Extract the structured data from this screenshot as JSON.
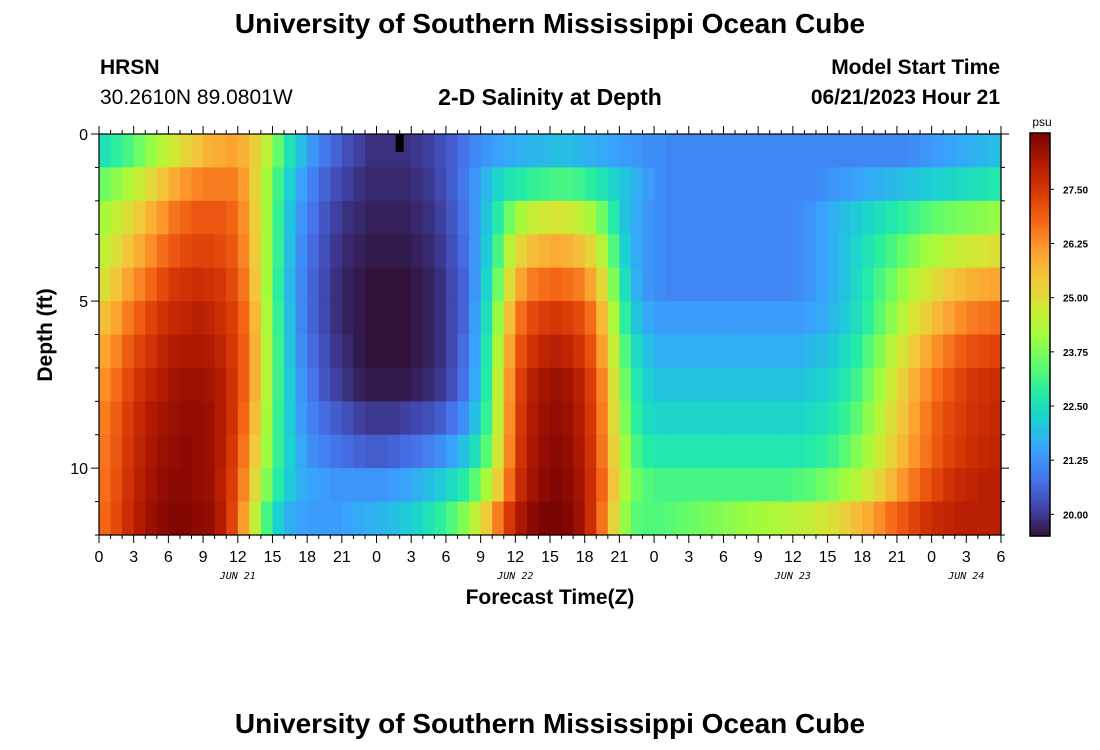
{
  "header": {
    "title": "University of Southern Mississippi Ocean Cube",
    "station": "HRSN",
    "coords": "30.2610N  89.0801W",
    "subtitle": "2-D Salinity at Depth",
    "model_start_label": "Model Start Time",
    "model_start_value": "06/21/2023 Hour 21"
  },
  "footer": {
    "title": "University of Southern Mississippi Ocean Cube"
  },
  "colors": {
    "colormap": [
      "#30123b",
      "#4145ab",
      "#4675ed",
      "#39a2fc",
      "#1bcfd4",
      "#24eca6",
      "#61fc6c",
      "#a4fc3b",
      "#d1e834",
      "#f3c63a",
      "#fe9b2d",
      "#f36315",
      "#d93806",
      "#b11901",
      "#7a0402"
    ]
  },
  "chart_data": {
    "type": "heatmap",
    "title": "2-D Salinity at Depth",
    "xlabel": "Forecast Time(Z)",
    "ylabel": "Depth (ft)",
    "x_range_hours": [
      0,
      78
    ],
    "x_ticks": [
      {
        "h": 0,
        "label": "0"
      },
      {
        "h": 3,
        "label": "3"
      },
      {
        "h": 6,
        "label": "6"
      },
      {
        "h": 9,
        "label": "9"
      },
      {
        "h": 12,
        "label": "12"
      },
      {
        "h": 15,
        "label": "15"
      },
      {
        "h": 18,
        "label": "18"
      },
      {
        "h": 21,
        "label": "21"
      },
      {
        "h": 24,
        "label": "0"
      },
      {
        "h": 27,
        "label": "3"
      },
      {
        "h": 30,
        "label": "6"
      },
      {
        "h": 33,
        "label": "9"
      },
      {
        "h": 36,
        "label": "12"
      },
      {
        "h": 39,
        "label": "15"
      },
      {
        "h": 42,
        "label": "18"
      },
      {
        "h": 45,
        "label": "21"
      },
      {
        "h": 48,
        "label": "0"
      },
      {
        "h": 51,
        "label": "3"
      },
      {
        "h": 54,
        "label": "6"
      },
      {
        "h": 57,
        "label": "9"
      },
      {
        "h": 60,
        "label": "12"
      },
      {
        "h": 63,
        "label": "15"
      },
      {
        "h": 66,
        "label": "18"
      },
      {
        "h": 69,
        "label": "21"
      },
      {
        "h": 72,
        "label": "0"
      },
      {
        "h": 75,
        "label": "3"
      },
      {
        "h": 78,
        "label": "6"
      }
    ],
    "date_labels": [
      {
        "h": 12,
        "label": "JUN 21"
      },
      {
        "h": 36,
        "label": "JUN 22"
      },
      {
        "h": 60,
        "label": "JUN 23"
      },
      {
        "h": 75,
        "label": "JUN 24"
      }
    ],
    "y_range_ft": [
      0,
      12
    ],
    "y_ticks": [
      {
        "v": 0,
        "label": "0"
      },
      {
        "v": 5,
        "label": "5"
      },
      {
        "v": 10,
        "label": "10"
      }
    ],
    "current_time_marker_hour": 26,
    "colorbar": {
      "unit": "psu",
      "range": [
        19.5,
        28.8
      ],
      "ticks": [
        {
          "v": 20.0,
          "label": "20.00"
        },
        {
          "v": 21.25,
          "label": "21.25"
        },
        {
          "v": 22.5,
          "label": "22.50"
        },
        {
          "v": 23.75,
          "label": "23.75"
        },
        {
          "v": 25.0,
          "label": "25.00"
        },
        {
          "v": 26.25,
          "label": "26.25"
        },
        {
          "v": 27.5,
          "label": "27.50"
        }
      ]
    },
    "time_step_hours": 1,
    "depth_levels_ft": [
      0.5,
      1.5,
      2.5,
      3.5,
      4.5,
      5.5,
      6.5,
      7.5,
      8.5,
      9.5,
      10.5,
      11.5
    ],
    "salinity_rows_psu": [
      [
        22.6,
        22.9,
        23.2,
        23.6,
        24.0,
        24.4,
        24.8,
        25.2,
        25.5,
        25.8,
        25.9,
        26.0,
        25.8,
        25.3,
        24.5,
        23.5,
        22.6,
        21.9,
        21.3,
        20.9,
        20.6,
        20.3,
        20.1,
        19.9,
        19.9,
        19.9,
        19.9,
        20.0,
        20.1,
        20.3,
        20.5,
        20.8,
        21.1,
        21.3,
        21.5,
        21.6,
        21.7,
        21.8,
        21.8,
        21.9,
        21.9,
        21.8,
        21.7,
        21.6,
        21.5,
        21.4,
        21.3,
        21.2,
        21.2,
        21.1,
        21.1,
        21.1,
        21.1,
        21.1,
        21.1,
        21.1,
        21.1,
        21.1,
        21.1,
        21.1,
        21.1,
        21.1,
        21.1,
        21.1,
        21.1,
        21.1,
        21.1,
        21.1,
        21.1,
        21.1,
        21.2,
        21.3,
        21.4,
        21.5,
        21.6,
        21.7,
        21.8,
        21.9
      ],
      [
        23.6,
        23.9,
        24.3,
        24.7,
        25.1,
        25.5,
        25.9,
        26.2,
        26.4,
        26.5,
        26.5,
        26.5,
        26.1,
        25.2,
        24.2,
        23.1,
        22.2,
        21.5,
        21.0,
        20.6,
        20.3,
        20.1,
        19.9,
        19.8,
        19.8,
        19.8,
        19.8,
        19.9,
        20.0,
        20.2,
        20.5,
        20.9,
        21.3,
        21.8,
        22.3,
        22.6,
        22.8,
        23.0,
        23.1,
        23.2,
        23.2,
        23.1,
        22.9,
        22.6,
        22.3,
        22.0,
        21.7,
        21.4,
        21.2,
        21.1,
        21.1,
        21.1,
        21.1,
        21.1,
        21.1,
        21.1,
        21.1,
        21.1,
        21.1,
        21.1,
        21.1,
        21.1,
        21.2,
        21.3,
        21.4,
        21.5,
        21.6,
        21.7,
        21.8,
        21.9,
        22.0,
        22.1,
        22.2,
        22.3,
        22.4,
        22.5,
        22.6,
        22.7
      ],
      [
        24.2,
        24.6,
        25.0,
        25.4,
        25.8,
        26.2,
        26.6,
        26.8,
        27.0,
        27.0,
        27.0,
        26.8,
        26.3,
        25.3,
        24.2,
        23.0,
        22.0,
        21.3,
        20.8,
        20.4,
        20.1,
        19.9,
        19.8,
        19.7,
        19.7,
        19.7,
        19.7,
        19.8,
        19.9,
        20.1,
        20.4,
        20.8,
        21.3,
        22.0,
        22.8,
        23.6,
        24.2,
        24.6,
        24.8,
        24.9,
        24.8,
        24.6,
        24.2,
        23.6,
        22.8,
        22.0,
        21.6,
        21.3,
        21.2,
        21.1,
        21.1,
        21.1,
        21.1,
        21.1,
        21.1,
        21.1,
        21.1,
        21.1,
        21.1,
        21.1,
        21.2,
        21.3,
        21.5,
        21.7,
        21.9,
        22.1,
        22.3,
        22.5,
        22.7,
        22.9,
        23.1,
        23.3,
        23.5,
        23.6,
        23.7,
        23.8,
        23.9,
        24.0
      ],
      [
        24.6,
        25.0,
        25.5,
        25.9,
        26.3,
        26.7,
        27.0,
        27.2,
        27.3,
        27.3,
        27.2,
        27.0,
        26.4,
        25.4,
        24.2,
        23.0,
        21.9,
        21.2,
        20.7,
        20.3,
        20.0,
        19.8,
        19.7,
        19.6,
        19.6,
        19.6,
        19.6,
        19.7,
        19.8,
        20.0,
        20.3,
        20.7,
        21.3,
        22.1,
        23.2,
        24.4,
        25.2,
        25.6,
        25.8,
        25.9,
        25.8,
        25.6,
        25.2,
        24.4,
        23.3,
        22.2,
        21.6,
        21.3,
        21.2,
        21.1,
        21.1,
        21.1,
        21.1,
        21.1,
        21.1,
        21.1,
        21.1,
        21.1,
        21.1,
        21.1,
        21.2,
        21.3,
        21.5,
        21.7,
        22.0,
        22.3,
        22.6,
        22.9,
        23.2,
        23.5,
        23.8,
        24.1,
        24.3,
        24.5,
        24.7,
        24.8,
        24.9,
        25.0
      ],
      [
        25.0,
        25.5,
        26.0,
        26.4,
        26.8,
        27.2,
        27.5,
        27.6,
        27.7,
        27.6,
        27.5,
        27.2,
        26.6,
        25.5,
        24.2,
        22.9,
        21.8,
        21.1,
        20.6,
        20.2,
        19.9,
        19.7,
        19.6,
        19.5,
        19.5,
        19.5,
        19.5,
        19.6,
        19.7,
        19.9,
        20.2,
        20.6,
        21.3,
        22.3,
        23.6,
        25.0,
        26.0,
        26.5,
        26.7,
        26.8,
        26.7,
        26.5,
        26.0,
        25.1,
        23.8,
        22.5,
        21.7,
        21.3,
        21.2,
        21.1,
        21.1,
        21.1,
        21.1,
        21.1,
        21.1,
        21.1,
        21.1,
        21.1,
        21.1,
        21.1,
        21.2,
        21.3,
        21.5,
        21.7,
        22.0,
        22.4,
        22.8,
        23.2,
        23.6,
        24.0,
        24.4,
        24.8,
        25.1,
        25.4,
        25.6,
        25.8,
        25.9,
        26.0
      ],
      [
        25.6,
        26.0,
        26.5,
        26.9,
        27.3,
        27.6,
        27.8,
        27.9,
        28.0,
        27.9,
        27.7,
        27.4,
        26.8,
        25.7,
        24.3,
        23.0,
        21.9,
        21.1,
        20.6,
        20.2,
        19.9,
        19.7,
        19.6,
        19.5,
        19.5,
        19.5,
        19.5,
        19.6,
        19.7,
        19.9,
        20.2,
        20.6,
        21.4,
        22.5,
        24.0,
        25.6,
        26.7,
        27.2,
        27.4,
        27.5,
        27.4,
        27.2,
        26.7,
        25.7,
        24.3,
        22.9,
        22.0,
        21.6,
        21.4,
        21.4,
        21.4,
        21.4,
        21.4,
        21.4,
        21.4,
        21.4,
        21.4,
        21.4,
        21.4,
        21.4,
        21.4,
        21.5,
        21.6,
        21.8,
        22.1,
        22.5,
        22.9,
        23.4,
        23.9,
        24.4,
        24.9,
        25.3,
        25.7,
        26.0,
        26.3,
        26.5,
        26.6,
        26.7
      ],
      [
        26.0,
        26.4,
        26.9,
        27.3,
        27.6,
        27.9,
        28.1,
        28.2,
        28.2,
        28.1,
        27.9,
        27.5,
        26.9,
        25.8,
        24.4,
        23.1,
        22.0,
        21.2,
        20.7,
        20.3,
        20.0,
        19.8,
        19.6,
        19.5,
        19.5,
        19.5,
        19.5,
        19.6,
        19.7,
        19.9,
        20.2,
        20.7,
        21.5,
        22.7,
        24.3,
        26.0,
        27.1,
        27.6,
        27.9,
        28.0,
        27.9,
        27.6,
        27.1,
        26.1,
        24.7,
        23.3,
        22.4,
        21.9,
        21.7,
        21.7,
        21.7,
        21.7,
        21.7,
        21.7,
        21.7,
        21.7,
        21.7,
        21.7,
        21.7,
        21.7,
        21.7,
        21.8,
        21.9,
        22.1,
        22.4,
        22.8,
        23.3,
        23.8,
        24.4,
        24.9,
        25.4,
        25.9,
        26.3,
        26.6,
        26.9,
        27.1,
        27.2,
        27.3
      ],
      [
        26.3,
        26.7,
        27.2,
        27.6,
        27.9,
        28.1,
        28.3,
        28.4,
        28.4,
        28.3,
        28.1,
        27.6,
        26.9,
        25.8,
        24.4,
        23.1,
        22.1,
        21.3,
        20.8,
        20.4,
        20.1,
        19.9,
        19.7,
        19.6,
        19.6,
        19.6,
        19.6,
        19.7,
        19.8,
        20.0,
        20.3,
        20.8,
        21.6,
        22.8,
        24.5,
        26.2,
        27.4,
        28.0,
        28.3,
        28.4,
        28.3,
        28.0,
        27.4,
        26.4,
        25.0,
        23.6,
        22.7,
        22.2,
        22.0,
        22.0,
        22.0,
        22.0,
        22.0,
        22.0,
        22.0,
        22.0,
        22.0,
        22.0,
        22.0,
        22.0,
        22.0,
        22.1,
        22.2,
        22.4,
        22.7,
        23.1,
        23.6,
        24.1,
        24.7,
        25.3,
        25.8,
        26.3,
        26.7,
        27.0,
        27.3,
        27.5,
        27.6,
        27.7
      ],
      [
        26.5,
        26.9,
        27.4,
        27.8,
        28.1,
        28.3,
        28.4,
        28.5,
        28.5,
        28.4,
        28.1,
        27.6,
        26.8,
        25.6,
        24.2,
        23.0,
        22.1,
        21.4,
        21.0,
        20.7,
        20.5,
        20.3,
        20.1,
        20.0,
        20.0,
        20.0,
        20.1,
        20.2,
        20.3,
        20.5,
        20.8,
        21.2,
        21.9,
        23.0,
        24.6,
        26.3,
        27.5,
        28.1,
        28.4,
        28.5,
        28.4,
        28.1,
        27.5,
        26.5,
        25.1,
        23.8,
        22.9,
        22.4,
        22.3,
        22.3,
        22.3,
        22.3,
        22.3,
        22.3,
        22.3,
        22.3,
        22.3,
        22.3,
        22.3,
        22.3,
        22.3,
        22.4,
        22.5,
        22.7,
        23.0,
        23.4,
        23.9,
        24.4,
        25.0,
        25.5,
        26.0,
        26.5,
        26.9,
        27.2,
        27.4,
        27.6,
        27.7,
        27.8
      ],
      [
        26.6,
        27.0,
        27.5,
        27.9,
        28.2,
        28.4,
        28.5,
        28.6,
        28.5,
        28.4,
        28.1,
        27.5,
        26.6,
        25.4,
        24.1,
        23.0,
        22.2,
        21.6,
        21.2,
        21.0,
        20.8,
        20.7,
        20.6,
        20.5,
        20.5,
        20.6,
        20.7,
        20.8,
        21.0,
        21.2,
        21.5,
        21.9,
        22.5,
        23.4,
        24.8,
        26.4,
        27.6,
        28.2,
        28.5,
        28.6,
        28.5,
        28.2,
        27.6,
        26.6,
        25.3,
        24.1,
        23.2,
        22.8,
        22.7,
        22.7,
        22.7,
        22.7,
        22.7,
        22.7,
        22.7,
        22.7,
        22.7,
        22.7,
        22.7,
        22.7,
        22.7,
        22.8,
        22.9,
        23.1,
        23.4,
        23.8,
        24.2,
        24.7,
        25.2,
        25.7,
        26.2,
        26.6,
        27.0,
        27.3,
        27.5,
        27.7,
        27.8,
        27.9
      ],
      [
        26.7,
        27.1,
        27.6,
        28.0,
        28.3,
        28.5,
        28.6,
        28.6,
        28.5,
        28.4,
        28.0,
        27.4,
        26.4,
        25.1,
        23.8,
        22.8,
        22.1,
        21.7,
        21.5,
        21.4,
        21.3,
        21.3,
        21.3,
        21.3,
        21.3,
        21.4,
        21.5,
        21.7,
        21.9,
        22.1,
        22.4,
        22.8,
        23.4,
        24.2,
        25.3,
        26.7,
        27.8,
        28.3,
        28.6,
        28.7,
        28.6,
        28.3,
        27.7,
        26.8,
        25.5,
        24.3,
        23.6,
        23.3,
        23.2,
        23.2,
        23.2,
        23.2,
        23.2,
        23.2,
        23.2,
        23.2,
        23.2,
        23.2,
        23.2,
        23.2,
        23.3,
        23.4,
        23.6,
        23.8,
        24.1,
        24.4,
        24.8,
        25.2,
        25.7,
        26.2,
        26.6,
        27.0,
        27.3,
        27.6,
        27.8,
        27.9,
        28.0,
        28.0
      ],
      [
        26.8,
        27.2,
        27.7,
        28.1,
        28.4,
        28.6,
        28.7,
        28.7,
        28.6,
        28.5,
        28.1,
        27.3,
        26.1,
        24.6,
        23.2,
        22.2,
        21.7,
        21.5,
        21.4,
        21.4,
        21.4,
        21.5,
        21.6,
        21.7,
        21.8,
        21.9,
        22.1,
        22.3,
        22.6,
        22.9,
        23.3,
        23.8,
        24.5,
        25.4,
        26.5,
        27.5,
        28.2,
        28.6,
        28.8,
        28.8,
        28.7,
        28.4,
        27.7,
        26.6,
        25.2,
        24.0,
        23.4,
        23.3,
        23.3,
        23.4,
        23.5,
        23.6,
        23.7,
        23.8,
        23.9,
        24.0,
        24.1,
        24.2,
        24.3,
        24.4,
        24.5,
        24.6,
        24.8,
        25.0,
        25.3,
        25.6,
        25.9,
        26.3,
        26.7,
        27.0,
        27.3,
        27.6,
        27.8,
        27.9,
        28.0,
        28.0,
        28.0,
        28.0
      ]
    ]
  }
}
